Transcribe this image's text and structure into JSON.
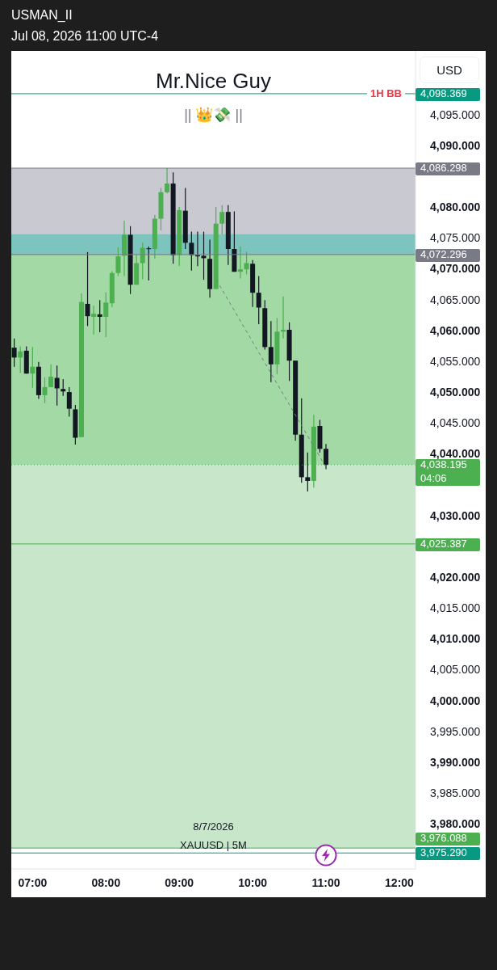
{
  "chart_data": {
    "type": "candlestick",
    "title": "Mr.Nice Guy",
    "subtitle": "|| 👑💸 ||",
    "annotations": [
      "USMAN_II",
      "Jul 08, 2026 11:00 UTC-4",
      "USD",
      "8/7/2026",
      "XAUUSD | 5M",
      "1H BB",
      "04:06"
    ],
    "series": [
      {
        "x": [
          6.75,
          6.8333,
          6.9167,
          7,
          7.0833,
          7.1667,
          7.25,
          7.3333,
          7.4167,
          7.5,
          7.5833,
          7.6667,
          7.75,
          7.8333,
          7.9167,
          8,
          8.0833,
          8.1667,
          8.25,
          8.3333,
          8.4167,
          8.5,
          8.5833,
          8.6667,
          8.75,
          8.8333,
          8.9167,
          9,
          9.0833,
          9.1667,
          9.25,
          9.3333,
          9.4167,
          9.5,
          9.5833,
          9.6667,
          9.75,
          9.8333,
          9.9167,
          10,
          10.0833,
          10.1667,
          10.25,
          10.3333,
          10.4167,
          10.5,
          10.5833,
          10.6667,
          10.75,
          10.8333,
          10.9167,
          11
        ],
        "ohlc": [
          [
            4057.2,
            4058.7,
            4054.1,
            4055.6
          ],
          [
            4055.6,
            4057.4,
            4053.1,
            4056.6
          ],
          [
            4056.7,
            4057.4,
            4053.0,
            4053.0
          ],
          [
            4053.0,
            4057.3,
            4050.7,
            4054.1
          ],
          [
            4054.1,
            4054.9,
            4048.9,
            4049.5
          ],
          [
            4049.5,
            4052.4,
            4048.2,
            4050.8
          ],
          [
            4050.8,
            4054.5,
            4050.8,
            4052.5
          ],
          [
            4052.3,
            4054.3,
            4047.8,
            4050.6
          ],
          [
            4050.5,
            4052.1,
            4049.4,
            4050.1
          ],
          [
            4050.0,
            4050.8,
            4046.0,
            4047.3
          ],
          [
            4047.2,
            4047.9,
            4041.5,
            4042.6
          ],
          [
            4042.7,
            4066.0,
            4042.7,
            4064.6
          ],
          [
            4064.3,
            4072.7,
            4060.7,
            4062.3
          ],
          [
            4062.2,
            4064.0,
            4059.3,
            4062.7
          ],
          [
            4062.6,
            4064.9,
            4059.7,
            4062.2
          ],
          [
            4062.2,
            4066.2,
            4058.9,
            4064.5
          ],
          [
            4064.4,
            4069.6,
            4063.8,
            4069.3
          ],
          [
            4069.3,
            4073.5,
            4068.8,
            4072.0
          ],
          [
            4072.1,
            4077.8,
            4068.8,
            4075.5
          ],
          [
            4075.5,
            4076.9,
            4065.9,
            4067.4
          ],
          [
            4067.4,
            4072.2,
            4067.4,
            4070.9
          ],
          [
            4070.9,
            4074.2,
            4068.3,
            4073.4
          ],
          [
            4073.3,
            4073.6,
            4068.1,
            4073.2
          ],
          [
            4073.2,
            4078.7,
            4071.6,
            4078.1
          ],
          [
            4078.1,
            4083.1,
            4076.2,
            4082.4
          ],
          [
            4082.4,
            4086.3,
            4082.2,
            4083.8
          ],
          [
            4083.8,
            4085.6,
            4070.8,
            4072.2
          ],
          [
            4072.2,
            4080.0,
            4070.4,
            4079.5
          ],
          [
            4079.4,
            4083.1,
            4073.2,
            4074.2
          ],
          [
            4074.2,
            4076.0,
            4069.7,
            4072.2
          ],
          [
            4072.2,
            4076.0,
            4070.4,
            4072.0
          ],
          [
            4072.1,
            4076.0,
            4068.2,
            4071.7
          ],
          [
            4071.6,
            4074.7,
            4065.3,
            4066.7
          ],
          [
            4066.7,
            4080.0,
            4066.7,
            4077.3
          ],
          [
            4077.3,
            4080.3,
            4075.6,
            4079.2
          ],
          [
            4079.2,
            4080.3,
            4070.6,
            4073.2
          ],
          [
            4073.2,
            4079.3,
            4069.5,
            4069.5
          ],
          [
            4069.5,
            4073.6,
            4068.4,
            4069.9
          ],
          [
            4069.9,
            4072.8,
            4069.1,
            4070.9
          ],
          [
            4070.8,
            4071.4,
            4063.8,
            4066.1
          ],
          [
            4066.1,
            4068.8,
            4061.0,
            4063.7
          ],
          [
            4063.6,
            4064.9,
            4056.9,
            4057.3
          ],
          [
            4057.3,
            4061.5,
            4051.6,
            4054.5
          ],
          [
            4054.5,
            4062.0,
            4052.9,
            4059.8
          ],
          [
            4059.8,
            4065.5,
            4058.7,
            4060.1
          ],
          [
            4060.1,
            4061.3,
            4051.8,
            4055.1
          ],
          [
            4055.1,
            4055.1,
            4042.1,
            4043.1
          ],
          [
            4043.1,
            4049.0,
            4035.3,
            4036.2
          ],
          [
            4036.2,
            4040.2,
            4033.9,
            4035.6
          ],
          [
            4035.6,
            4046.3,
            4034.5,
            4044.4
          ],
          [
            4044.5,
            4045.5,
            4040.2,
            4040.8
          ],
          [
            4040.8,
            4041.6,
            4037.5,
            4038.2
          ]
        ],
        "colors": [
          "#131722",
          "#4caf50",
          "#131722",
          "#4caf50",
          "#131722",
          "#4caf50",
          "#4caf50",
          "#131722",
          "#131722",
          "#131722",
          "#131722",
          "#4caf50",
          "#131722",
          "#4caf50",
          "#131722",
          "#4caf50",
          "#4caf50",
          "#4caf50",
          "#4caf50",
          "#131722",
          "#4caf50",
          "#4caf50",
          "#131722",
          "#4caf50",
          "#4caf50",
          "#4caf50",
          "#131722",
          "#4caf50",
          "#131722",
          "#131722",
          "#131722",
          "#131722",
          "#131722",
          "#4caf50",
          "#4caf50",
          "#131722",
          "#131722",
          "#4caf50",
          "#4caf50",
          "#131722",
          "#131722",
          "#131722",
          "#131722",
          "#4caf50",
          "#4caf50",
          "#131722",
          "#131722",
          "#131722",
          "#131722",
          "#4caf50",
          "#131722",
          "#131722"
        ]
      },
      {
        "type": "line",
        "x": [
          9.505,
          10.99
        ],
        "values": [
          4068.2,
          4038.0
        ],
        "color": "#787b86",
        "line_style": "dashed"
      }
    ],
    "bands": [
      {
        "axis": "y",
        "from": 4072.296,
        "to": 4086.298,
        "color": "#c9cad1"
      },
      {
        "axis": "y",
        "from": 4038.195,
        "to": 4072.296,
        "color": "#a3d9a5"
      },
      {
        "axis": "y",
        "from": 3976.088,
        "to": 4038.195,
        "color": "#c8e6c9"
      },
      {
        "axis": "y",
        "from": 4072.2,
        "to": 4075.6,
        "color": "#7cc4bd"
      }
    ],
    "ref_lines": [
      {
        "axis": "y",
        "value": 4098.369,
        "label": "4,098.369",
        "color": "#089981",
        "line_style": "solid"
      },
      {
        "axis": "y",
        "value": 4086.298,
        "label": "4,086.298",
        "color": "#787b86",
        "line_style": "solid"
      },
      {
        "axis": "y",
        "value": 4072.296,
        "label": "4,072.296",
        "color": "#787b86",
        "line_style": "solid"
      },
      {
        "axis": "y",
        "value": 4038.195,
        "label": "4,038.195",
        "color": "#4caf50",
        "line_style": "dotted"
      },
      {
        "axis": "y",
        "value": 4025.387,
        "label": "4,025.387",
        "color": "#4caf50",
        "line_style": "solid"
      },
      {
        "axis": "y",
        "value": 3976.088,
        "label": "3,976.088",
        "color": "#4caf50",
        "line_style": "solid"
      },
      {
        "axis": "y",
        "value": 3975.29,
        "label": "3,975.290",
        "color": "#089981",
        "line_style": "solid"
      }
    ],
    "xlim": [
      6.71,
      12.22
    ],
    "xticks": [
      {
        "value": 7,
        "label": "07:00"
      },
      {
        "value": 8,
        "label": "08:00"
      },
      {
        "value": 9,
        "label": "09:00"
      },
      {
        "value": 10,
        "label": "10:00"
      },
      {
        "value": 11,
        "label": "11:00"
      },
      {
        "value": 12,
        "label": "12:00"
      }
    ],
    "ylim": [
      3972.7,
      4105.3
    ],
    "yticks": [
      {
        "value": 3980,
        "label": "3,980.000"
      },
      {
        "value": 3985,
        "label": "3,985.000"
      },
      {
        "value": 3990,
        "label": "3,990.000"
      },
      {
        "value": 3995,
        "label": "3,995.000"
      },
      {
        "value": 4000,
        "label": "4,000.000"
      },
      {
        "value": 4005,
        "label": "4,005.000"
      },
      {
        "value": 4010,
        "label": "4,010.000"
      },
      {
        "value": 4015,
        "label": "4,015.000"
      },
      {
        "value": 4020,
        "label": "4,020.000"
      },
      {
        "value": 4030,
        "label": "4,030.000"
      },
      {
        "value": 4040,
        "label": "4,040.000"
      },
      {
        "value": 4045,
        "label": "4,045.000"
      },
      {
        "value": 4050,
        "label": "4,050.000"
      },
      {
        "value": 4055,
        "label": "4,055.000"
      },
      {
        "value": 4060,
        "label": "4,060.000"
      },
      {
        "value": 4065,
        "label": "4,065.000"
      },
      {
        "value": 4070,
        "label": "4,070.000"
      },
      {
        "value": 4075,
        "label": "4,075.000"
      },
      {
        "value": 4080,
        "label": "4,080.000"
      },
      {
        "value": 4090,
        "label": "4,090.000"
      },
      {
        "value": 4095,
        "label": "4,095.000"
      }
    ],
    "legend": false
  }
}
